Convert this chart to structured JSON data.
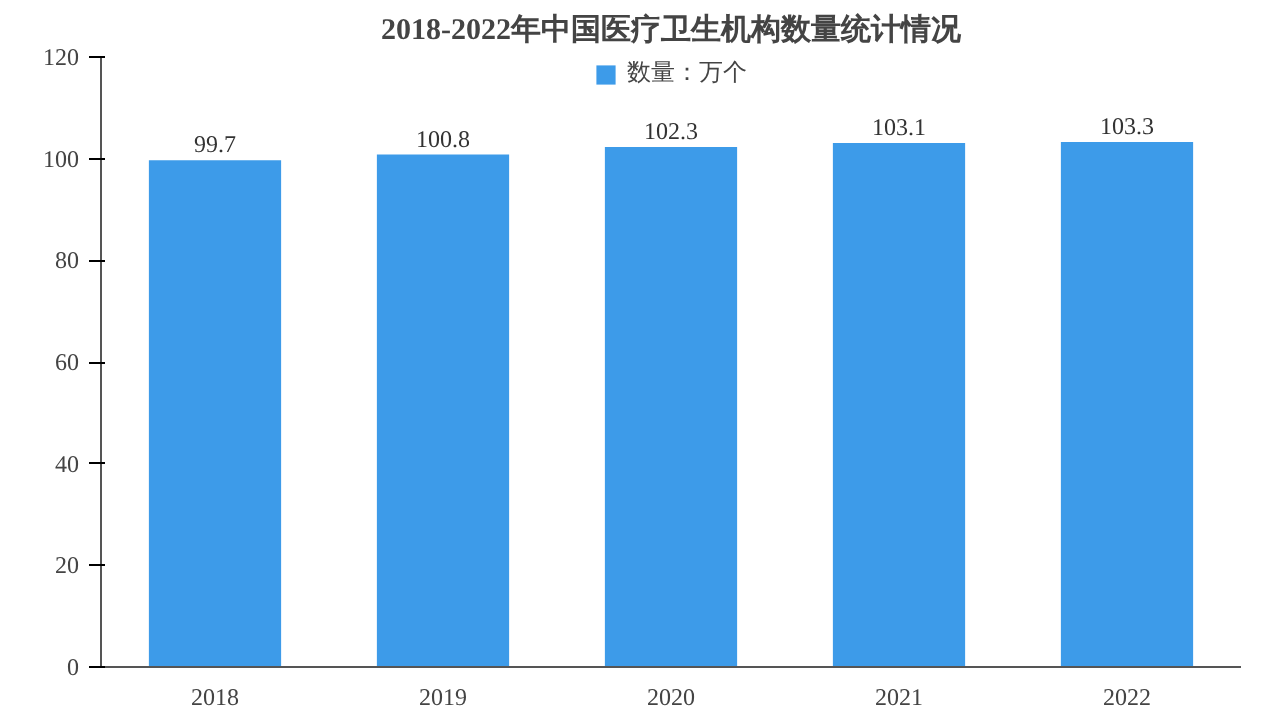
{
  "chart_data": {
    "type": "bar",
    "title": "2018-2022年中国医疗卫生机构数量统计情况",
    "categories": [
      "2018",
      "2019",
      "2020",
      "2021",
      "2022"
    ],
    "series": [
      {
        "name": "数量：万个",
        "color": "#3d9be9",
        "values": [
          99.7,
          100.8,
          102.3,
          103.1,
          103.3
        ]
      }
    ],
    "ylim": [
      0,
      120
    ],
    "yticks": [
      0,
      20,
      40,
      60,
      80,
      100,
      120
    ],
    "data_labels": true,
    "legend": "top",
    "grid": false
  }
}
